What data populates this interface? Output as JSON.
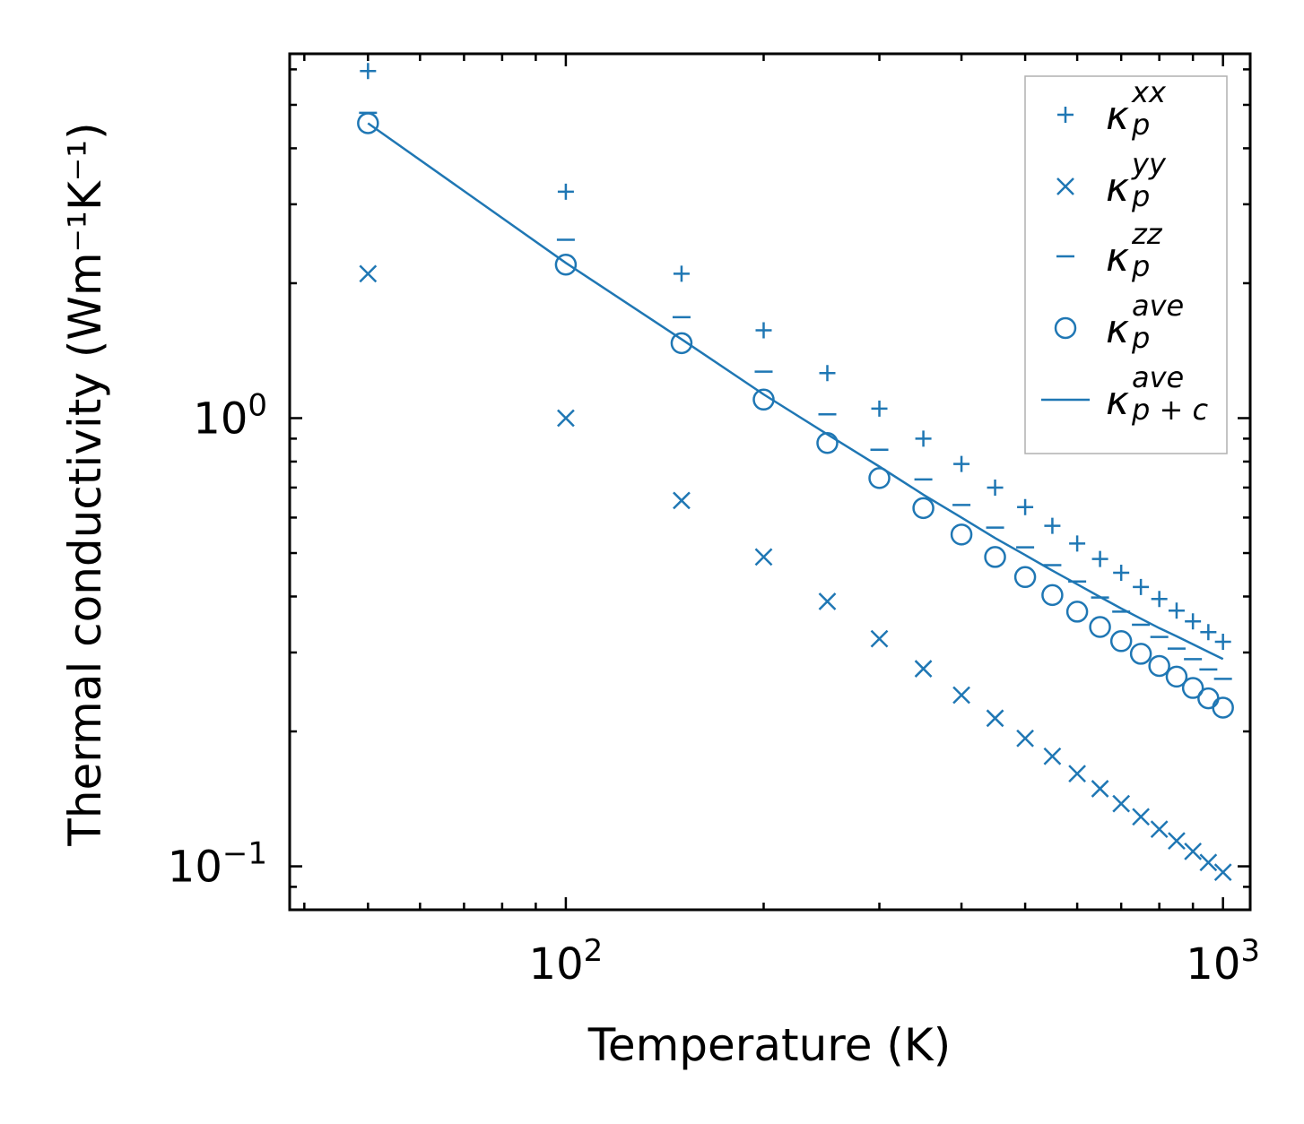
{
  "chart_data": {
    "type": "scatter",
    "scale": {
      "x": "log",
      "y": "log"
    },
    "xlabel": "Temperature (K)",
    "ylabel": "Thermal conductivity (Wm⁻¹K⁻¹)",
    "xlim": [
      38,
      1100
    ],
    "ylim": [
      0.08,
      6.5
    ],
    "x_ticks": [
      {
        "value": 100,
        "base": "10",
        "exp": "2"
      },
      {
        "value": 1000,
        "base": "10",
        "exp": "3"
      }
    ],
    "y_ticks": [
      {
        "value": 0.1,
        "base": "10",
        "exp": "−1"
      },
      {
        "value": 1,
        "base": "10",
        "exp": "0"
      }
    ],
    "color": "#1f77b4",
    "x": [
      50,
      100,
      150,
      200,
      250,
      300,
      350,
      400,
      450,
      500,
      550,
      600,
      650,
      700,
      750,
      800,
      850,
      900,
      950,
      1000
    ],
    "series": [
      {
        "name": "kappa_p_xx",
        "marker": "plus",
        "values": [
          5.95,
          3.2,
          2.1,
          1.57,
          1.26,
          1.05,
          0.9,
          0.79,
          0.7,
          0.633,
          0.575,
          0.525,
          0.485,
          0.452,
          0.42,
          0.395,
          0.372,
          0.352,
          0.333,
          0.317
        ]
      },
      {
        "name": "kappa_p_yy",
        "marker": "x",
        "values": [
          2.1,
          1.0,
          0.655,
          0.49,
          0.39,
          0.322,
          0.276,
          0.241,
          0.214,
          0.193,
          0.176,
          0.161,
          0.149,
          0.138,
          0.129,
          0.121,
          0.114,
          0.108,
          0.102,
          0.097
        ]
      },
      {
        "name": "kappa_p_zz",
        "marker": "hline",
        "values": [
          4.8,
          2.5,
          1.68,
          1.27,
          1.02,
          0.85,
          0.73,
          0.64,
          0.57,
          0.515,
          0.47,
          0.432,
          0.398,
          0.37,
          0.346,
          0.325,
          0.306,
          0.29,
          0.275,
          0.262
        ]
      },
      {
        "name": "kappa_p_ave",
        "marker": "circle",
        "values": [
          4.55,
          2.2,
          1.47,
          1.1,
          0.88,
          0.735,
          0.63,
          0.55,
          0.49,
          0.442,
          0.403,
          0.37,
          0.342,
          0.318,
          0.298,
          0.28,
          0.265,
          0.25,
          0.237,
          0.226
        ]
      },
      {
        "name": "kappa_p+c_ave",
        "marker": "line",
        "values": [
          4.55,
          2.22,
          1.5,
          1.13,
          0.92,
          0.78,
          0.675,
          0.6,
          0.54,
          0.495,
          0.457,
          0.426,
          0.399,
          0.376,
          0.357,
          0.34,
          0.326,
          0.313,
          0.301,
          0.29
        ]
      }
    ],
    "legend": {
      "position": "upper right",
      "entries": [
        {
          "symbol": "κ",
          "sub": "p",
          "sup": "xx",
          "marker": "plus"
        },
        {
          "symbol": "κ",
          "sub": "p",
          "sup": "yy",
          "marker": "x"
        },
        {
          "symbol": "κ",
          "sub": "p",
          "sup": "zz",
          "marker": "hline"
        },
        {
          "symbol": "κ",
          "sub": "p",
          "sup": "ave",
          "marker": "circle"
        },
        {
          "symbol": "κ",
          "sub": "p + c",
          "sup": "ave",
          "marker": "line"
        }
      ]
    }
  }
}
